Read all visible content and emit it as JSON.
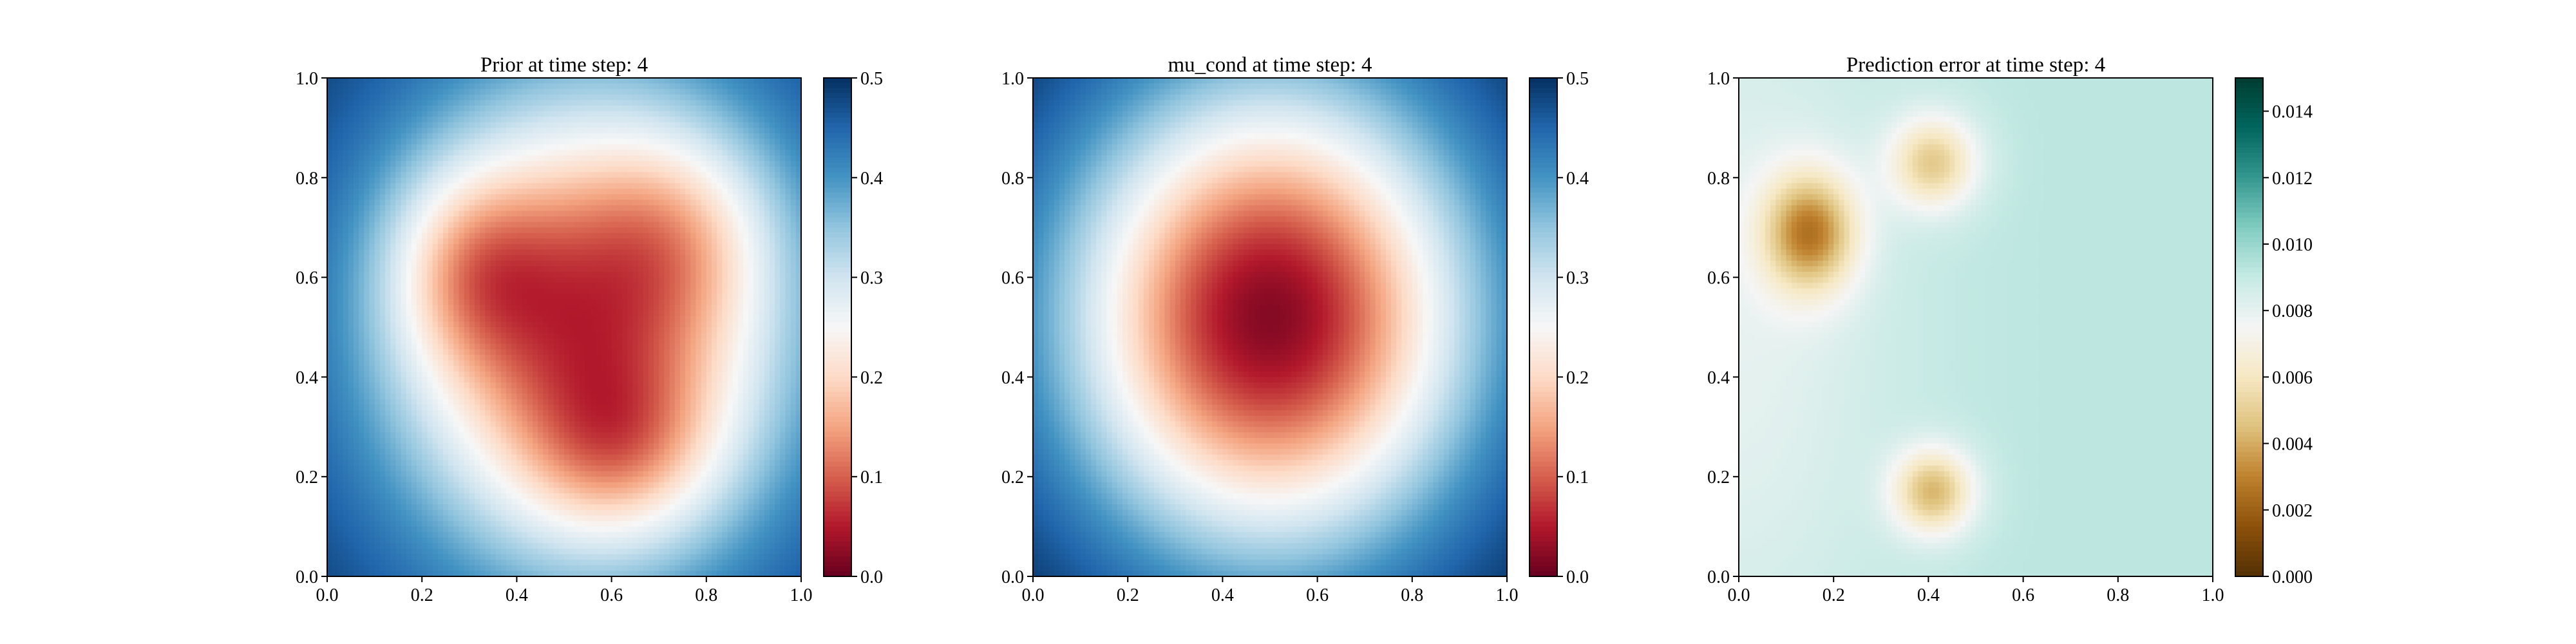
{
  "chart_data": [
    {
      "type": "heatmap",
      "title": "Prior at time step: 4",
      "xlim": [
        0.0,
        1.0
      ],
      "ylim": [
        0.0,
        1.0
      ],
      "xticks": [
        "0.0",
        "0.2",
        "0.4",
        "0.6",
        "0.8",
        "1.0"
      ],
      "yticks": [
        "0.0",
        "0.2",
        "0.4",
        "0.6",
        "0.8",
        "1.0"
      ],
      "colormap": "RdBu",
      "colorbar": {
        "min": 0.0,
        "max": 0.5,
        "ticks": [
          "0.0",
          "0.1",
          "0.2",
          "0.3",
          "0.4",
          "0.5"
        ]
      },
      "field": {
        "background": 0.5,
        "blobs": [
          {
            "x": 0.55,
            "y": 0.5,
            "sx": 0.3,
            "sy": 0.34,
            "amp": -0.42
          },
          {
            "x": 0.3,
            "y": 0.62,
            "sx": 0.12,
            "sy": 0.14,
            "amp": -0.12
          },
          {
            "x": 0.62,
            "y": 0.25,
            "sx": 0.14,
            "sy": 0.12,
            "amp": -0.1
          },
          {
            "x": 0.75,
            "y": 0.7,
            "sx": 0.14,
            "sy": 0.14,
            "amp": -0.08
          }
        ]
      }
    },
    {
      "type": "heatmap",
      "title": "mu_cond at time step: 4",
      "xlim": [
        0.0,
        1.0
      ],
      "ylim": [
        0.0,
        1.0
      ],
      "xticks": [
        "0.0",
        "0.2",
        "0.4",
        "0.6",
        "0.8",
        "1.0"
      ],
      "yticks": [
        "0.0",
        "0.2",
        "0.4",
        "0.6",
        "0.8",
        "1.0"
      ],
      "colormap": "RdBu",
      "colorbar": {
        "min": 0.0,
        "max": 0.5,
        "ticks": [
          "0.0",
          "0.1",
          "0.2",
          "0.3",
          "0.4",
          "0.5"
        ]
      },
      "field": {
        "background": 0.52,
        "blobs": [
          {
            "x": 0.5,
            "y": 0.52,
            "sx": 0.3,
            "sy": 0.33,
            "amp": -0.5
          }
        ]
      }
    },
    {
      "type": "heatmap",
      "title": "Prediction error at time step: 4",
      "xlim": [
        0.0,
        1.0
      ],
      "ylim": [
        0.0,
        1.0
      ],
      "xticks": [
        "0.0",
        "0.2",
        "0.4",
        "0.6",
        "0.8",
        "1.0"
      ],
      "yticks": [
        "0.0",
        "0.2",
        "0.4",
        "0.6",
        "0.8",
        "1.0"
      ],
      "colormap": "BrBG",
      "colorbar": {
        "min": 0.0,
        "max": 0.015,
        "ticks": [
          "0.000",
          "0.002",
          "0.004",
          "0.006",
          "0.008",
          "0.010",
          "0.012",
          "0.014"
        ]
      },
      "field": {
        "background": 0.0092,
        "blobs": [
          {
            "x": 0.15,
            "y": 0.69,
            "sx": 0.07,
            "sy": 0.085,
            "amp": -0.0058
          },
          {
            "x": 0.41,
            "y": 0.83,
            "sx": 0.065,
            "sy": 0.065,
            "amp": -0.0042
          },
          {
            "x": 0.41,
            "y": 0.17,
            "sx": 0.06,
            "sy": 0.06,
            "amp": -0.0048
          },
          {
            "x": 0.0,
            "y": 0.5,
            "sx": 0.22,
            "sy": 0.5,
            "amp": -0.0012
          }
        ]
      }
    }
  ]
}
